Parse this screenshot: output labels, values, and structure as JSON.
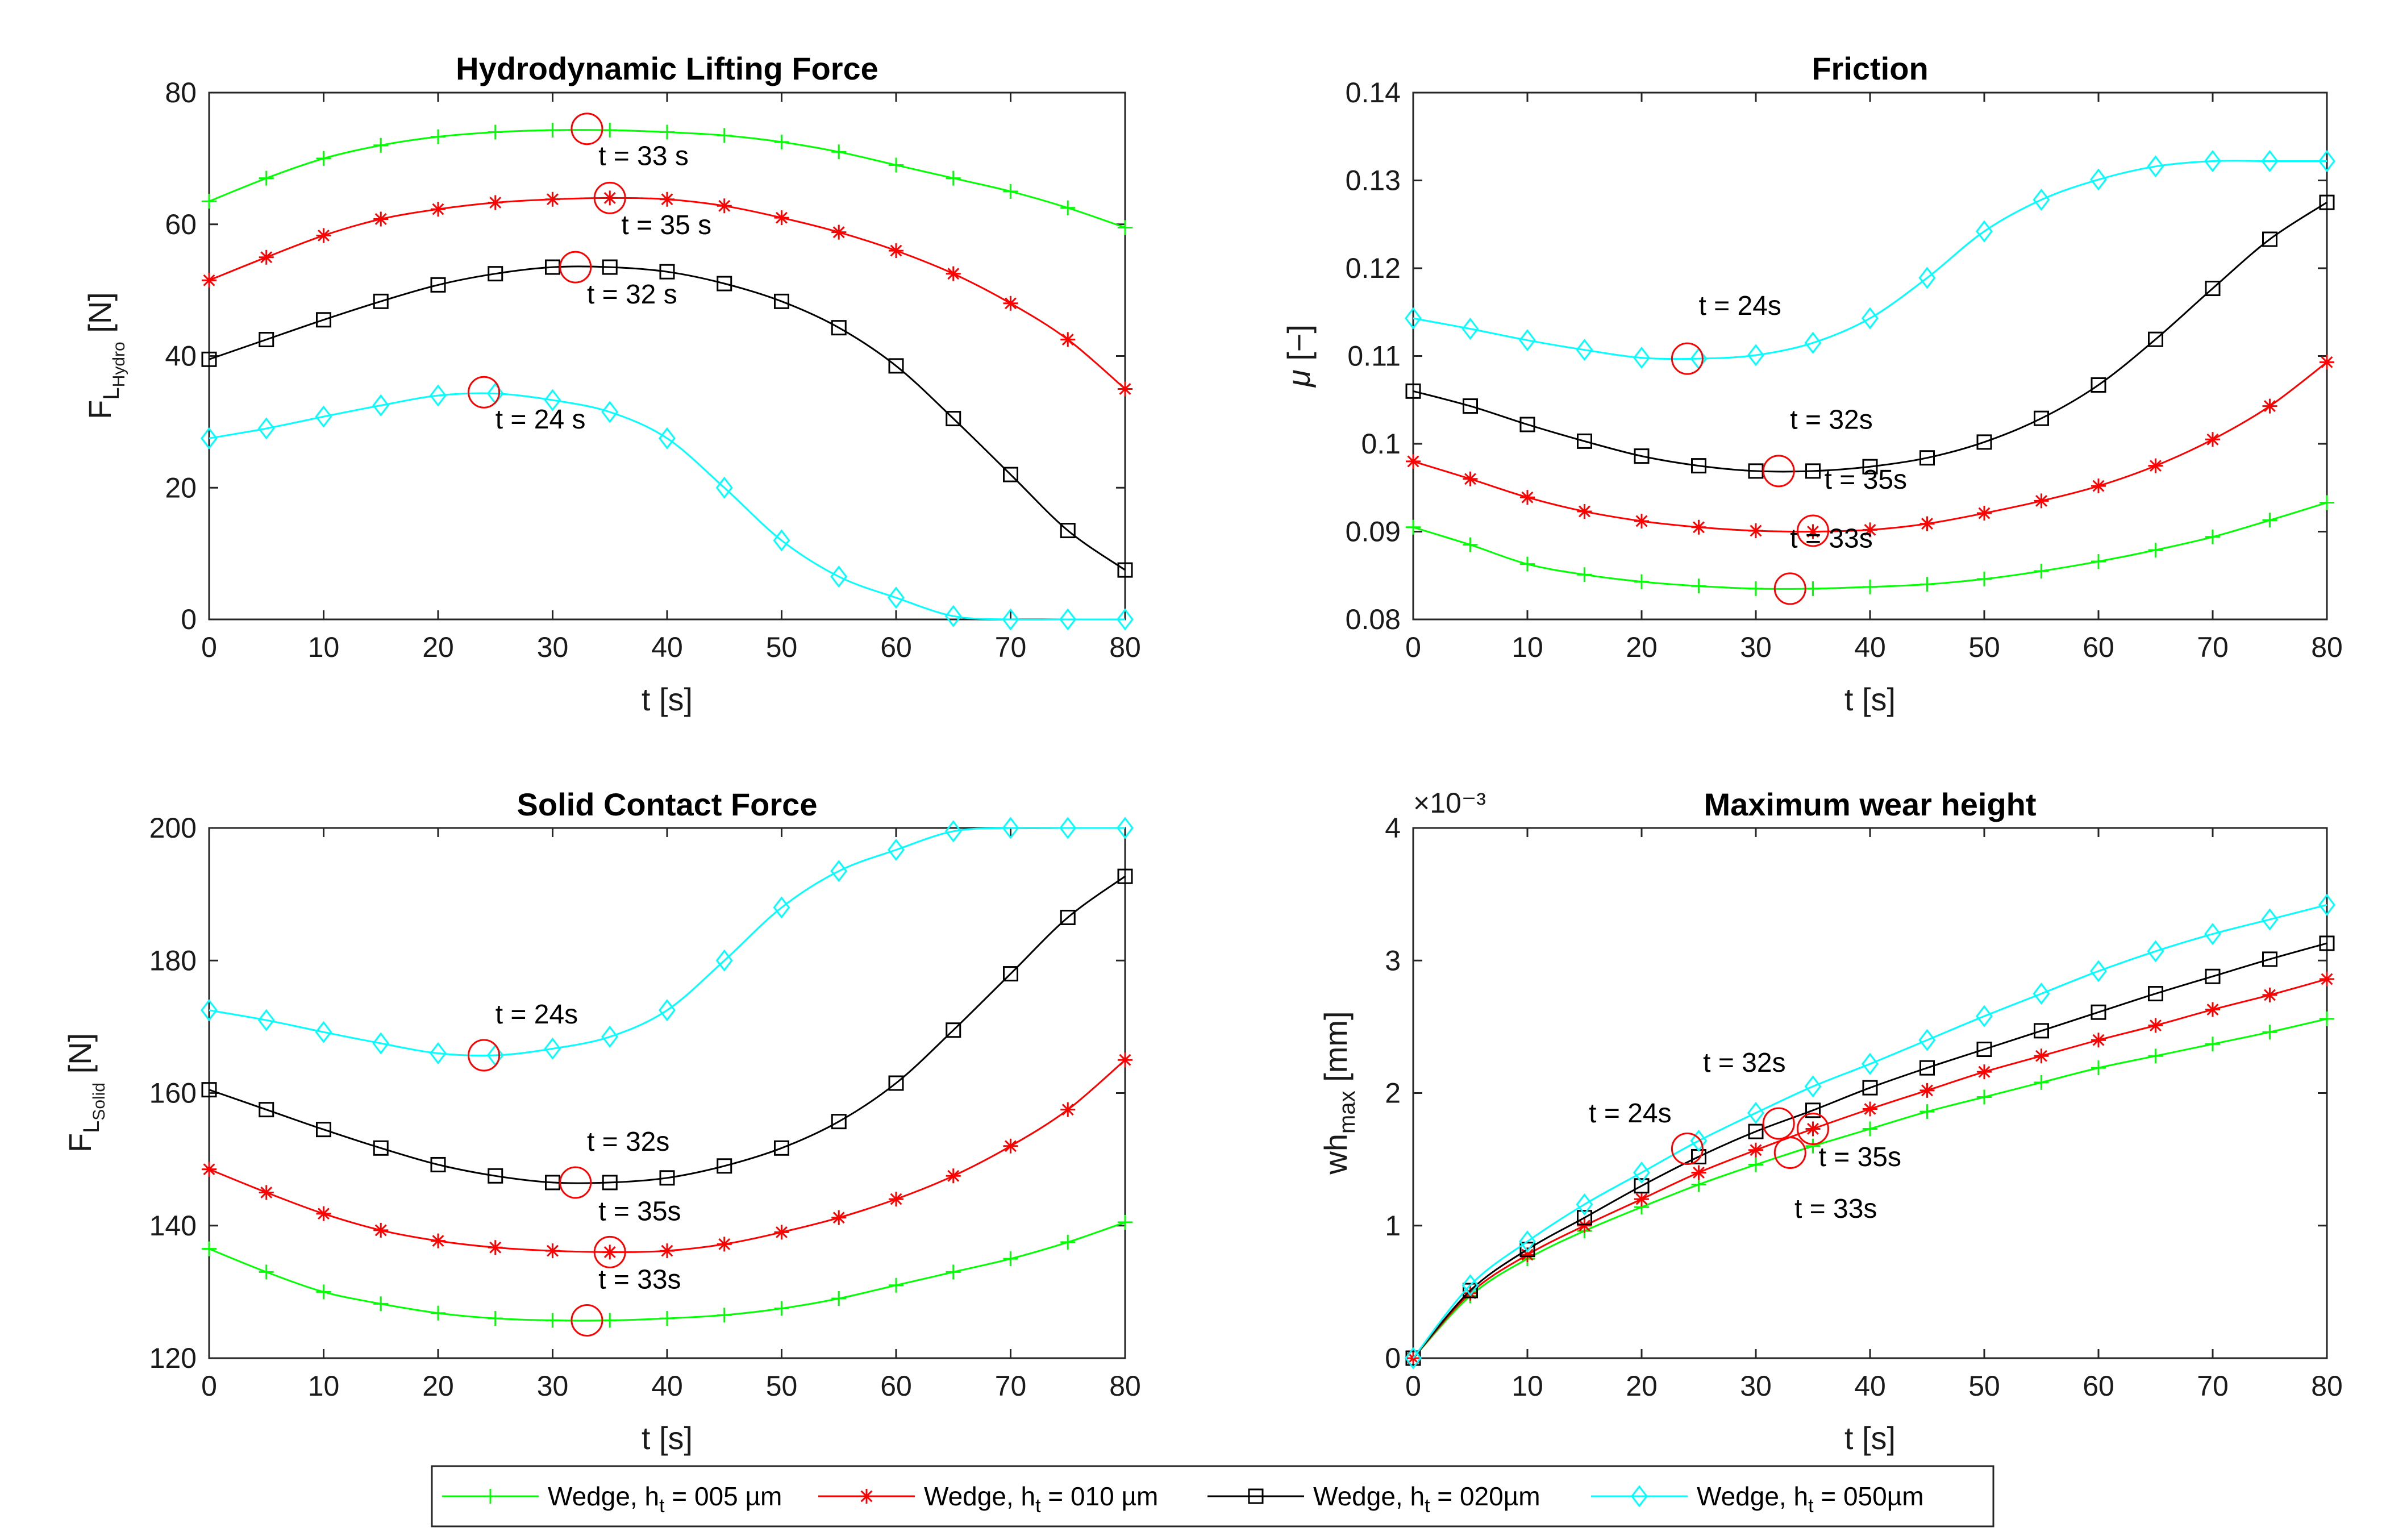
{
  "legend": {
    "items": [
      {
        "pre": "Wedge, h",
        "sub": "t",
        "post": " = 005 µm",
        "color": "#00ff00",
        "marker": "plus"
      },
      {
        "pre": "Wedge, h",
        "sub": "t",
        "post": " = 010 µm",
        "color": "#ff0000",
        "marker": "star"
      },
      {
        "pre": "Wedge, h",
        "sub": "t",
        "post": " = 020µm",
        "color": "#000000",
        "marker": "square"
      },
      {
        "pre": "Wedge, h",
        "sub": "t",
        "post": " = 050µm",
        "color": "#00ffff",
        "marker": "diamond"
      }
    ]
  },
  "chart_data": [
    {
      "id": "hydro",
      "type": "line",
      "title": "Hydrodynamic Lifting Force",
      "xlabel": "t [s]",
      "ylabel": {
        "base": "F",
        "sub1": "L",
        "sub2": "Hydro",
        "unit": " [N]"
      },
      "xlim": [
        0,
        80
      ],
      "ylim": [
        0,
        80
      ],
      "xticks": [
        0,
        10,
        20,
        30,
        40,
        50,
        60,
        70,
        80
      ],
      "yticks": [
        0,
        20,
        40,
        60,
        80
      ],
      "ytick_labels": [
        "0",
        "20",
        "40",
        "60",
        "80"
      ],
      "x": [
        0,
        5,
        10,
        15,
        20,
        25,
        30,
        35,
        40,
        45,
        50,
        55,
        60,
        65,
        70,
        75,
        80
      ],
      "series": [
        {
          "name": "Wedge, ht = 005 µm",
          "values": [
            63.5,
            67,
            70,
            72,
            73.3,
            74,
            74.3,
            74.3,
            74,
            73.5,
            72.5,
            71,
            69,
            67,
            65,
            62.5,
            59.5
          ]
        },
        {
          "name": "Wedge, ht = 010 µm",
          "values": [
            51.5,
            55,
            58.3,
            60.8,
            62.3,
            63.3,
            63.8,
            64,
            63.8,
            62.8,
            61,
            58.8,
            56,
            52.5,
            48,
            42.5,
            35
          ]
        },
        {
          "name": "Wedge, ht = 020µm",
          "values": [
            39.5,
            42.5,
            45.5,
            48.3,
            50.8,
            52.5,
            53.5,
            53.5,
            52.8,
            51,
            48.3,
            44.3,
            38.5,
            30.5,
            22,
            13.5,
            7.5
          ]
        },
        {
          "name": "Wedge, ht = 050µm",
          "values": [
            27.5,
            29,
            30.8,
            32.5,
            34,
            34.3,
            33.3,
            31.5,
            27.5,
            20,
            12,
            6.5,
            3.3,
            0.5,
            0,
            0,
            0
          ]
        }
      ],
      "annotations": [
        {
          "text": "t = 33 s",
          "cx": 33,
          "cy": 74.5,
          "tx": 34,
          "ty": 69
        },
        {
          "text": "t = 35 s",
          "cx": 35,
          "cy": 64,
          "tx": 36,
          "ty": 58.5
        },
        {
          "text": "t = 32 s",
          "cx": 32,
          "cy": 53.5,
          "tx": 33,
          "ty": 48
        },
        {
          "text": "t = 24 s",
          "cx": 24,
          "cy": 34.5,
          "tx": 25,
          "ty": 29
        }
      ]
    },
    {
      "id": "friction",
      "type": "line",
      "title": "Friction",
      "xlabel": "t [s]",
      "ylabel": {
        "base": "μ",
        "unit": " [−]"
      },
      "xlim": [
        0,
        80
      ],
      "ylim": [
        0.08,
        0.14
      ],
      "xticks": [
        0,
        10,
        20,
        30,
        40,
        50,
        60,
        70,
        80
      ],
      "yticks": [
        0.08,
        0.09,
        0.1,
        0.11,
        0.12,
        0.13,
        0.14
      ],
      "ytick_labels": [
        "0.08",
        "0.09",
        "0.1",
        "0.11",
        "0.12",
        "0.13",
        "0.14"
      ],
      "x": [
        0,
        5,
        10,
        15,
        20,
        25,
        30,
        35,
        40,
        45,
        50,
        55,
        60,
        65,
        70,
        75,
        80
      ],
      "series": [
        {
          "name": "Wedge, ht = 005 µm",
          "values": [
            0.0905,
            0.0885,
            0.0863,
            0.0851,
            0.0843,
            0.0838,
            0.0835,
            0.0835,
            0.0837,
            0.084,
            0.0846,
            0.0855,
            0.0866,
            0.0879,
            0.0894,
            0.0913,
            0.0933
          ]
        },
        {
          "name": "Wedge, ht = 010 µm",
          "values": [
            0.098,
            0.096,
            0.0939,
            0.0923,
            0.0912,
            0.0905,
            0.0901,
            0.09,
            0.0902,
            0.0909,
            0.0921,
            0.0935,
            0.0952,
            0.0975,
            0.1005,
            0.1043,
            0.1093
          ]
        },
        {
          "name": "Wedge, ht = 020µm",
          "values": [
            0.106,
            0.1043,
            0.1022,
            0.1003,
            0.0986,
            0.0975,
            0.0969,
            0.0969,
            0.0974,
            0.0984,
            0.1002,
            0.1029,
            0.1067,
            0.1119,
            0.1177,
            0.1233,
            0.1275
          ]
        },
        {
          "name": "Wedge, ht = 050µm",
          "values": [
            0.1143,
            0.1131,
            0.1118,
            0.1107,
            0.1098,
            0.1097,
            0.1101,
            0.1115,
            0.1143,
            0.1189,
            0.1242,
            0.1278,
            0.1301,
            0.1316,
            0.1322,
            0.1322,
            0.1322
          ]
        }
      ],
      "annotations": [
        {
          "text": "t = 24s",
          "cx": 24,
          "cy": 0.1097,
          "tx": 25,
          "ty": 0.1147
        },
        {
          "text": "t = 32s",
          "cx": 32,
          "cy": 0.0969,
          "tx": 33,
          "ty": 0.1017
        },
        {
          "text": "t = 35s",
          "cx": 35,
          "cy": 0.0901,
          "tx": 36,
          "ty": 0.0949
        },
        {
          "text": "t = 33s",
          "cx": 33,
          "cy": 0.0835,
          "tx": 33,
          "ty": 0.0882
        }
      ]
    },
    {
      "id": "solid",
      "type": "line",
      "title": "Solid Contact Force",
      "xlabel": "t [s]",
      "ylabel": {
        "base": "F",
        "sub1": "L",
        "sub2": "Solid",
        "unit": " [N]"
      },
      "xlim": [
        0,
        80
      ],
      "ylim": [
        120,
        200
      ],
      "xticks": [
        0,
        10,
        20,
        30,
        40,
        50,
        60,
        70,
        80
      ],
      "yticks": [
        120,
        140,
        160,
        180,
        200
      ],
      "ytick_labels": [
        "120",
        "140",
        "160",
        "180",
        "200"
      ],
      "x": [
        0,
        5,
        10,
        15,
        20,
        25,
        30,
        35,
        40,
        45,
        50,
        55,
        60,
        65,
        70,
        75,
        80
      ],
      "series": [
        {
          "name": "Wedge, ht = 005 µm",
          "values": [
            136.5,
            133,
            130,
            128.2,
            126.8,
            126,
            125.7,
            125.7,
            126,
            126.5,
            127.5,
            129,
            131,
            133,
            135,
            137.5,
            140.5
          ]
        },
        {
          "name": "Wedge, ht = 010 µm",
          "values": [
            148.5,
            145,
            141.8,
            139.3,
            137.7,
            136.7,
            136.2,
            136,
            136.2,
            137.2,
            139,
            141.2,
            144,
            147.5,
            152,
            157.5,
            165
          ]
        },
        {
          "name": "Wedge, ht = 020µm",
          "values": [
            160.5,
            157.5,
            154.5,
            151.7,
            149.2,
            147.5,
            146.5,
            146.5,
            147.2,
            149,
            151.7,
            155.7,
            161.5,
            169.5,
            178,
            186.5,
            192.7
          ]
        },
        {
          "name": "Wedge, ht = 050µm",
          "values": [
            172.5,
            171,
            169.2,
            167.5,
            166,
            165.7,
            166.7,
            168.5,
            172.5,
            180,
            188,
            193.5,
            196.7,
            199.5,
            200,
            200,
            200
          ]
        }
      ],
      "annotations": [
        {
          "text": "t = 24s",
          "cx": 24,
          "cy": 165.7,
          "tx": 25,
          "ty": 170.5
        },
        {
          "text": "t = 32s",
          "cx": 32,
          "cy": 146.5,
          "tx": 33,
          "ty": 151.3
        },
        {
          "text": "t = 35s",
          "cx": 35,
          "cy": 136,
          "tx": 34,
          "ty": 140.8
        },
        {
          "text": "t = 33s",
          "cx": 33,
          "cy": 125.7,
          "tx": 34,
          "ty": 130.5
        }
      ]
    },
    {
      "id": "wear",
      "type": "line",
      "title": "Maximum wear height",
      "xlabel": "t [s]",
      "ylabel": {
        "base": "wh",
        "sub1": "max",
        "unit": " [mm]"
      },
      "xlim": [
        0,
        80
      ],
      "ylim": [
        0,
        4
      ],
      "y_exponent": "×10⁻³",
      "xticks": [
        0,
        10,
        20,
        30,
        40,
        50,
        60,
        70,
        80
      ],
      "yticks": [
        0,
        1,
        2,
        3,
        4
      ],
      "ytick_labels": [
        "0",
        "1",
        "2",
        "3",
        "4"
      ],
      "x": [
        0,
        5,
        10,
        15,
        20,
        25,
        30,
        35,
        40,
        45,
        50,
        55,
        60,
        65,
        70,
        75,
        80
      ],
      "series": [
        {
          "name": "Wedge, ht = 005 µm",
          "values": [
            0,
            0.47,
            0.75,
            0.96,
            1.14,
            1.31,
            1.46,
            1.6,
            1.73,
            1.86,
            1.97,
            2.08,
            2.19,
            2.28,
            2.37,
            2.46,
            2.56
          ]
        },
        {
          "name": "Wedge, ht = 010 µm",
          "values": [
            0,
            0.49,
            0.78,
            1.0,
            1.2,
            1.4,
            1.57,
            1.73,
            1.88,
            2.02,
            2.16,
            2.28,
            2.4,
            2.51,
            2.63,
            2.74,
            2.86
          ]
        },
        {
          "name": "Wedge, ht = 020µm",
          "values": [
            0,
            0.51,
            0.82,
            1.06,
            1.3,
            1.52,
            1.71,
            1.87,
            2.04,
            2.19,
            2.33,
            2.47,
            2.61,
            2.75,
            2.88,
            3.01,
            3.13
          ]
        },
        {
          "name": "Wedge, ht = 050µm",
          "values": [
            0,
            0.55,
            0.88,
            1.16,
            1.4,
            1.64,
            1.85,
            2.05,
            2.22,
            2.4,
            2.58,
            2.75,
            2.92,
            3.07,
            3.2,
            3.31,
            3.42
          ]
        }
      ],
      "annotations": [
        {
          "text": "t = 24s",
          "cx": 24,
          "cy": 1.58,
          "tx": 19,
          "ty": 1.78,
          "anchor": "middle"
        },
        {
          "text": "t = 32s",
          "cx": 32,
          "cy": 1.77,
          "tx": 29,
          "ty": 2.16,
          "anchor": "middle"
        },
        {
          "text": "t = 35s",
          "cx": 35,
          "cy": 1.73,
          "tx": 35.5,
          "ty": 1.45,
          "anchor": "start"
        },
        {
          "text": "t = 33s",
          "cx": 33,
          "cy": 1.55,
          "tx": 37,
          "ty": 1.06,
          "anchor": "middle"
        }
      ]
    }
  ]
}
